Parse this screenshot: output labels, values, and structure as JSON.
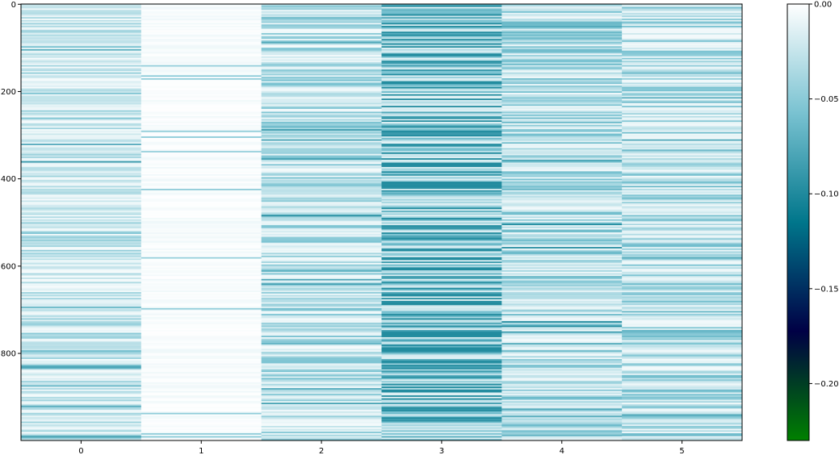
{
  "chart_data": {
    "type": "heatmap",
    "title": "",
    "xlabel": "",
    "ylabel": "",
    "columns": 6,
    "rows": 1000,
    "xticks": [
      "0",
      "1",
      "2",
      "3",
      "4",
      "5"
    ],
    "yticks": [
      "0",
      "200",
      "400",
      "600",
      "800"
    ],
    "ytick_values": [
      0,
      200,
      400,
      600,
      800
    ],
    "xlim": [
      -0.5,
      5.5
    ],
    "ylim": [
      999.5,
      -0.5
    ],
    "value_range": [
      -0.23,
      0.0
    ],
    "colormap": "ocean",
    "colormap_stops": [
      "#008000",
      "#000045",
      "#00768b",
      "#79c2d1",
      "#ffffff"
    ],
    "column_mean_intensity": [
      0.2,
      0.03,
      0.25,
      0.6,
      0.28,
      0.28
    ],
    "colorbar": {
      "ticks": [
        "0.00",
        "−0.05",
        "−0.10",
        "−0.15",
        "−0.20"
      ],
      "tick_values": [
        0.0,
        -0.05,
        -0.1,
        -0.15,
        -0.2
      ]
    }
  }
}
